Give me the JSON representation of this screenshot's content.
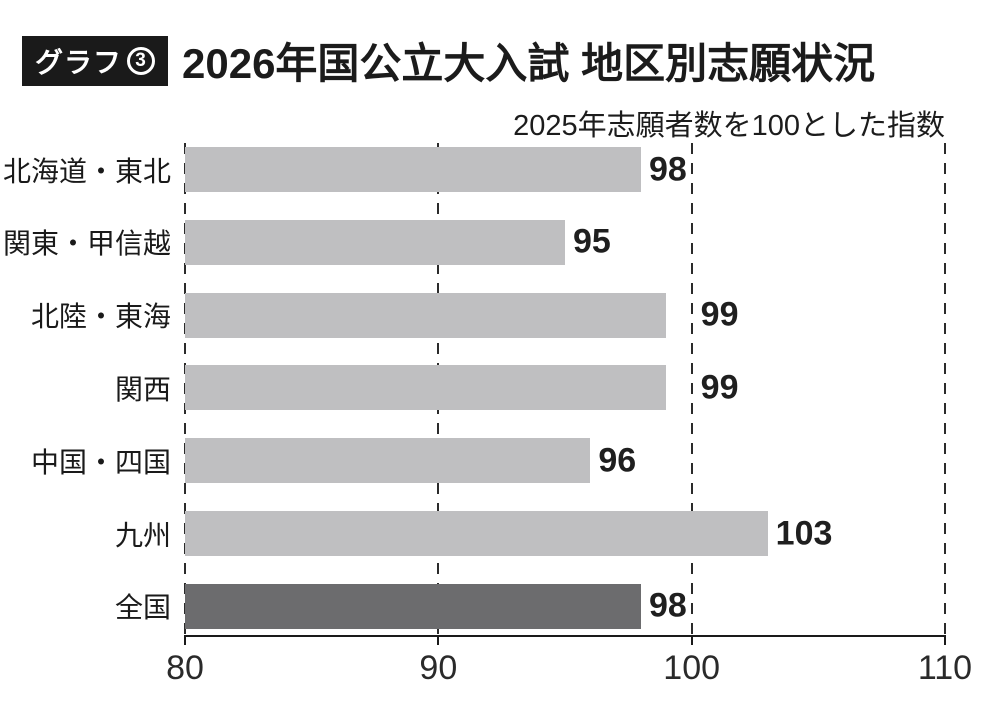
{
  "header": {
    "badge_label": "グラフ",
    "badge_number": "3",
    "title": "2026年国公立大入試 地区別志願状況"
  },
  "subtitle": "2025年志願者数を100とした指数",
  "chart_data": {
    "type": "bar",
    "orientation": "horizontal",
    "title": "2026年国公立大入試 地区別志願状況",
    "subtitle_note": "2025年志願者数を100とした指数",
    "categories": [
      "北海道・東北",
      "関東・甲信越",
      "北陸・東海",
      "関西",
      "中国・四国",
      "九州",
      "全国"
    ],
    "values": [
      98,
      95,
      99,
      99,
      96,
      103,
      98
    ],
    "highlight_category": "全国",
    "highlight_index": 6,
    "xlim": [
      80,
      110
    ],
    "x_ticks": [
      80,
      90,
      100,
      110
    ],
    "grid": "dashed vertical lines at every x tick, drawn behind bars",
    "legend": "none",
    "value_labels": true,
    "colors": {
      "bar": "#bfbfc1",
      "bar_highlight": "#6c6c6e",
      "axis": "#1a1a1a",
      "text": "#1a1a1a",
      "badge_bg": "#1a1a1a",
      "badge_text": "#ffffff"
    }
  }
}
